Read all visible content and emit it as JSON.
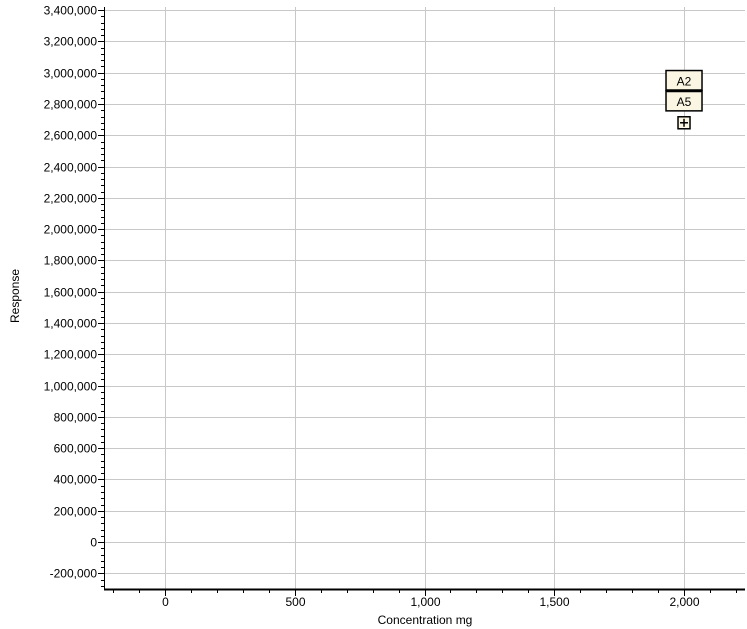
{
  "chart_data": {
    "type": "scatter",
    "title": "",
    "xlabel": "Concentration mg",
    "ylabel": "Response",
    "xlim": [
      -235,
      2235
    ],
    "ylim": [
      -300000,
      3420000
    ],
    "x_ticks": [
      0,
      500,
      1000,
      1500,
      2000
    ],
    "x_tick_labels": [
      "0",
      "500",
      "1,000",
      "1,500",
      "2,000"
    ],
    "x_minor_step": 100,
    "y_ticks": [
      -200000,
      0,
      200000,
      400000,
      600000,
      800000,
      1000000,
      1200000,
      1400000,
      1600000,
      1800000,
      2000000,
      2200000,
      2400000,
      2600000,
      2800000,
      3000000,
      3200000,
      3400000
    ],
    "y_tick_labels": [
      "-200,000",
      "0",
      "200,000",
      "400,000",
      "600,000",
      "800,000",
      "1,000,000",
      "1,200,000",
      "1,400,000",
      "1,600,000",
      "1,800,000",
      "2,000,000",
      "2,200,000",
      "2,400,000",
      "2,600,000",
      "2,800,000",
      "3,000,000",
      "3,200,000",
      "3,400,000"
    ],
    "y_minor_step": 40000,
    "grid": true,
    "points": [
      {
        "label": "A2",
        "x": 2000,
        "y": 2950000
      },
      {
        "label": "A5",
        "x": 2000,
        "y": 2820000
      },
      {
        "label": "",
        "x": 2000,
        "y": 2680000
      }
    ],
    "colors": {
      "grid": "#c8c8c8",
      "axis": "#000000",
      "marker_fill": "#fbf6e4",
      "marker_stroke": "#000000"
    }
  }
}
